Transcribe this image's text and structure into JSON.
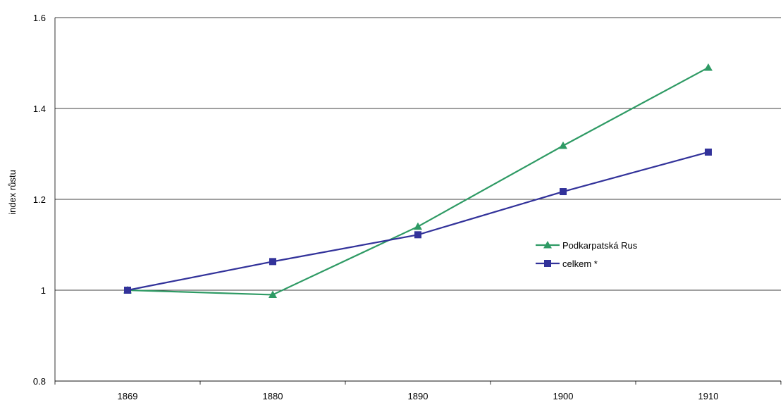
{
  "chart_data": {
    "type": "line",
    "title": "",
    "xlabel": "",
    "ylabel": "index růstu",
    "categories": [
      "1869",
      "1880",
      "1890",
      "1900",
      "1910"
    ],
    "ylim": [
      0.8,
      1.6
    ],
    "yticks": [
      "0.8",
      "1",
      "1.2",
      "1.4",
      "1.6"
    ],
    "grid": "horizontal",
    "legend_position": "right-middle",
    "series": [
      {
        "name": "Podkarpatská Rus",
        "color": "#2e9a64",
        "marker": "triangle",
        "values": [
          1.0,
          0.99,
          1.14,
          1.318,
          1.49
        ]
      },
      {
        "name": "celkem *",
        "color": "#32329a",
        "marker": "square",
        "values": [
          1.0,
          1.063,
          1.122,
          1.217,
          1.304
        ]
      }
    ]
  }
}
